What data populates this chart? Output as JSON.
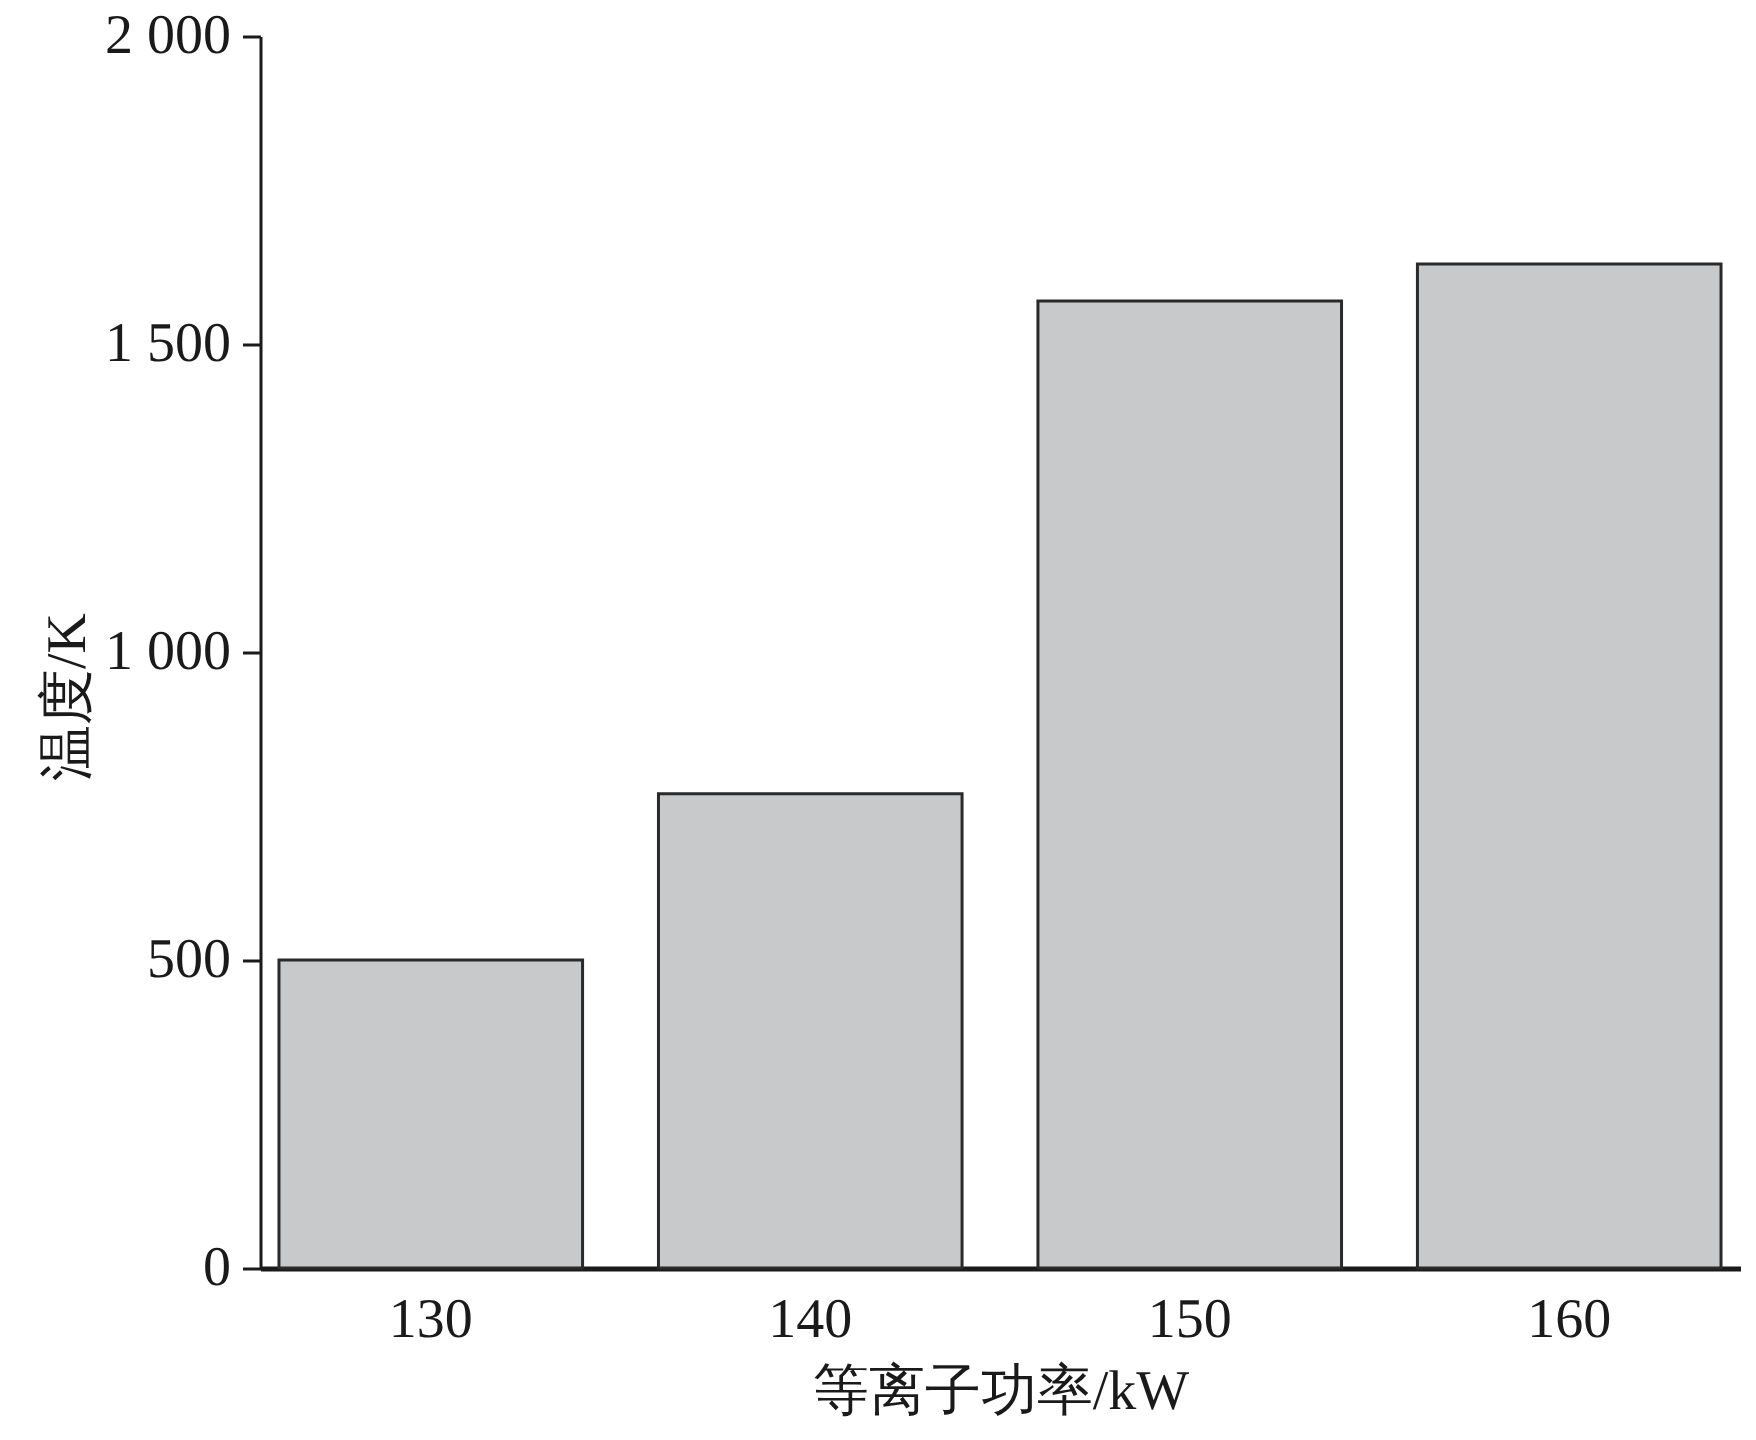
{
  "chart_data": {
    "type": "bar",
    "xlabel": "等离子功率/kW",
    "ylabel": "温度/K",
    "categories": [
      "130",
      "140",
      "150",
      "160"
    ],
    "values": [
      500,
      770,
      1570,
      1630
    ],
    "color": "#c8c9cb",
    "ylim": [
      0,
      2000
    ],
    "yticks": [
      0,
      500,
      {
        "value": 1000,
        "label": "1 000"
      },
      {
        "value": 1500,
        "label": "1 500"
      },
      {
        "value": 2000,
        "label": "2 000"
      }
    ]
  }
}
